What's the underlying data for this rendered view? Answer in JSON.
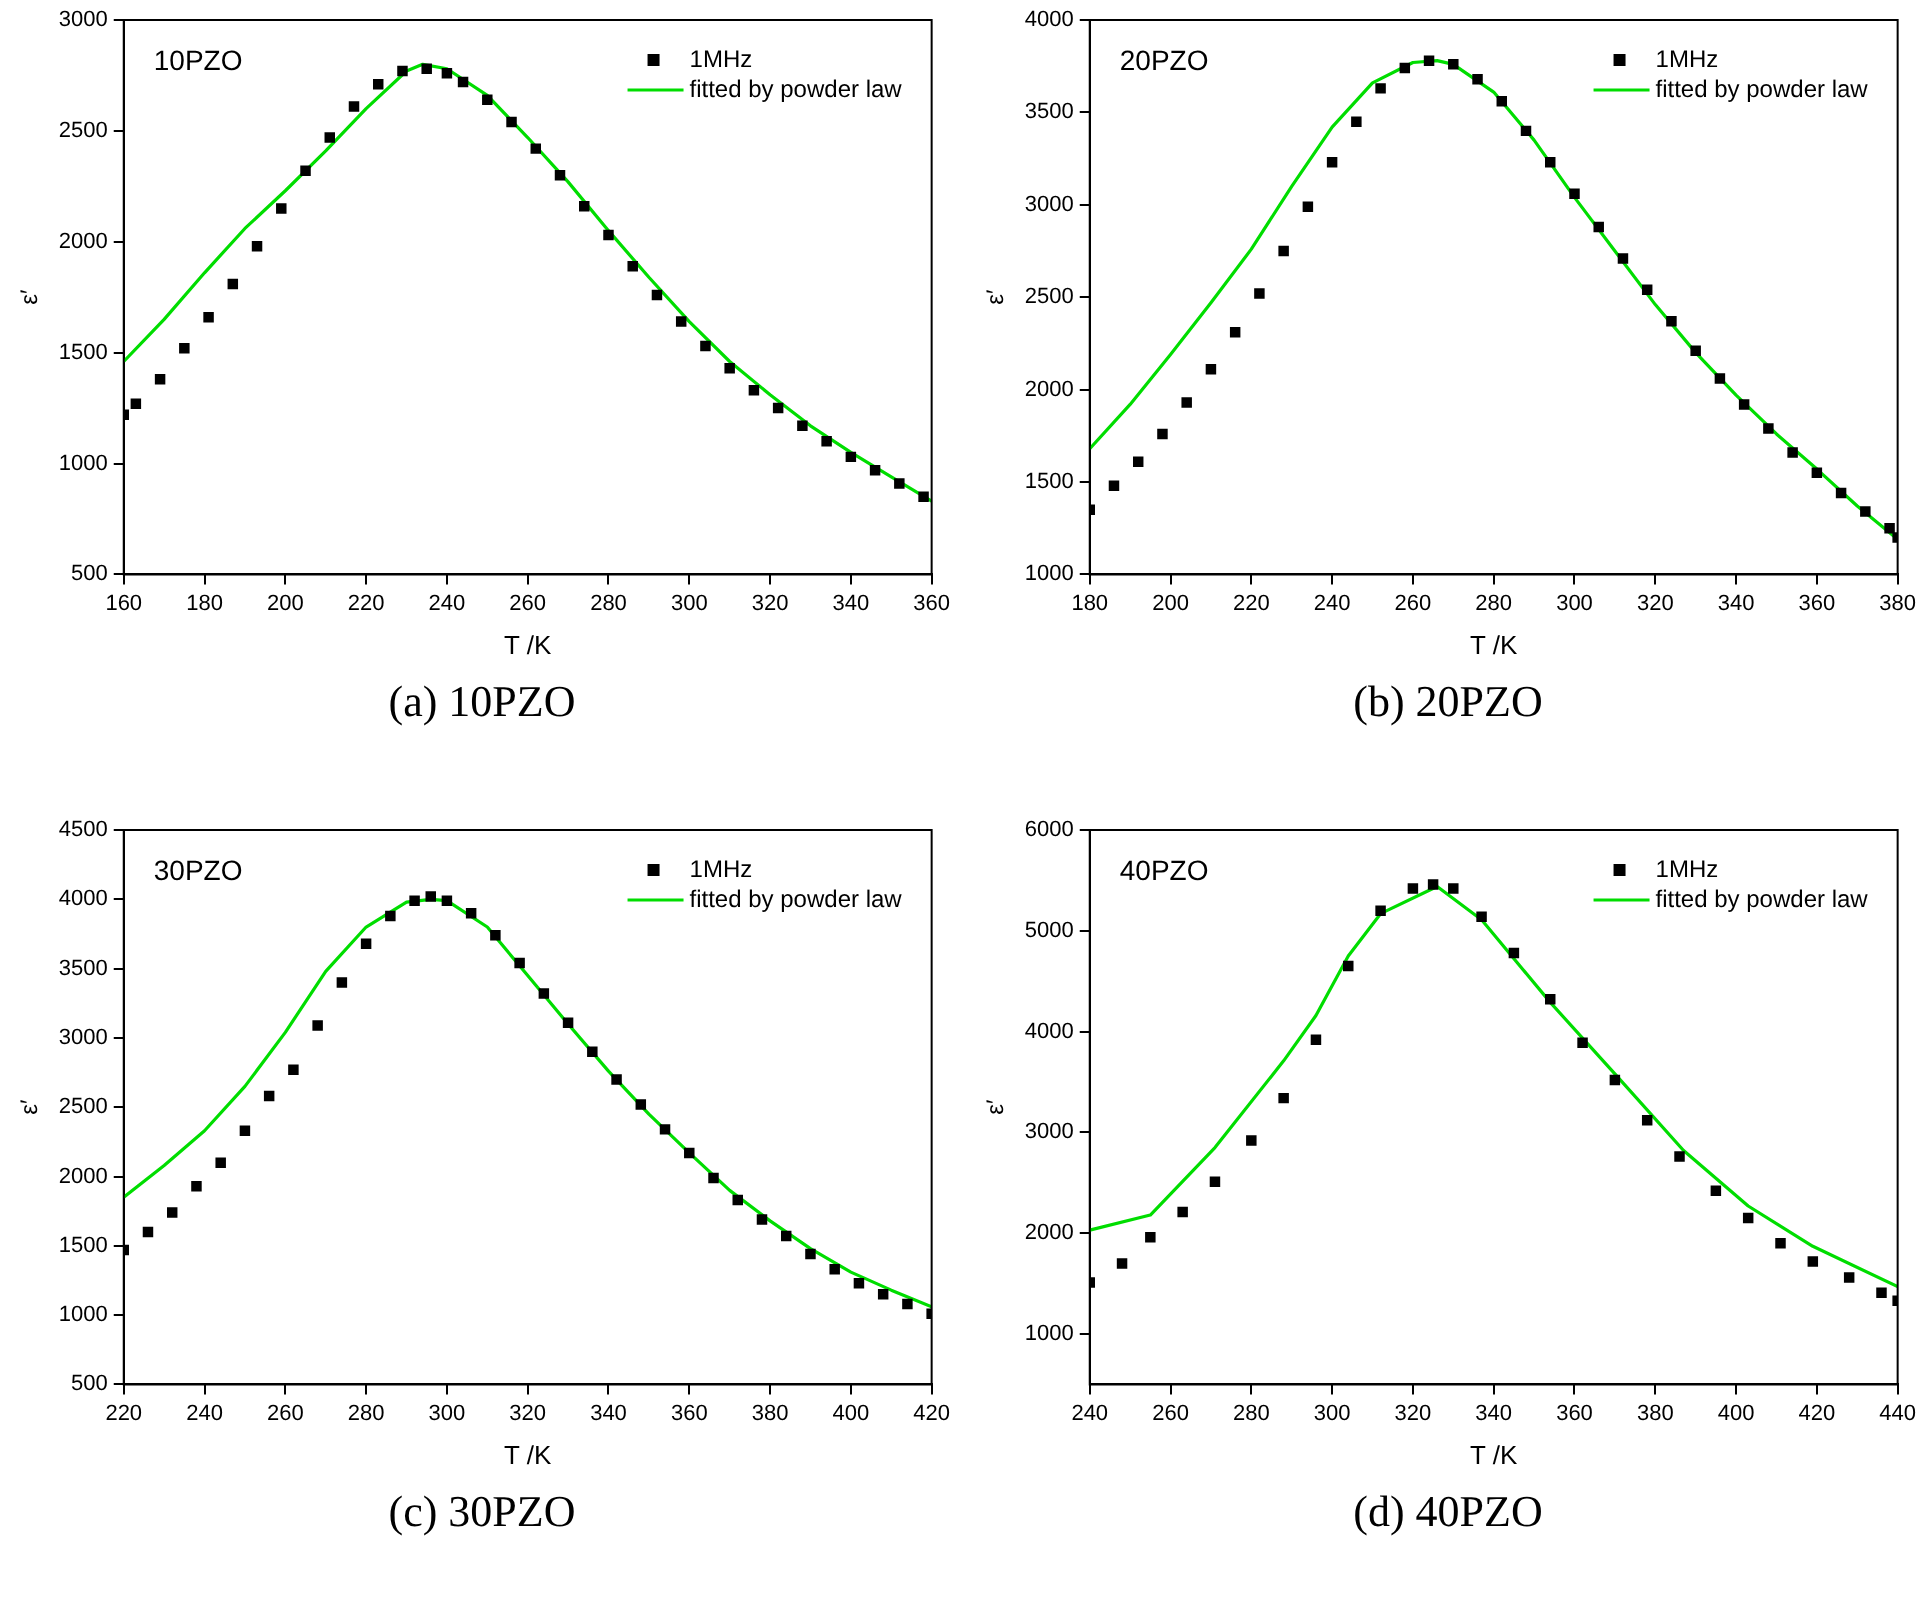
{
  "chart_data": [
    {
      "type": "scatter",
      "xlabel": "T /K",
      "ylabel": "ε′",
      "annotations": [
        "10PZO",
        "(a)  10PZO"
      ],
      "legend": "top right",
      "grid": false,
      "xlim": [
        160,
        360
      ],
      "xticks": [
        160,
        180,
        200,
        220,
        240,
        260,
        280,
        300,
        320,
        340,
        360
      ],
      "ylim": [
        500,
        3000
      ],
      "yticks": [
        500,
        1000,
        1500,
        2000,
        2500,
        3000
      ],
      "series": [
        {
          "name": "1MHz",
          "marker": "square",
          "color": "#000000",
          "x": [
            160,
            163,
            169,
            175,
            181,
            187,
            193,
            199,
            205,
            211,
            217,
            223,
            229,
            235,
            240,
            244,
            250,
            256,
            262,
            268,
            274,
            280,
            286,
            292,
            298,
            304,
            310,
            316,
            322,
            328,
            334,
            340,
            346,
            352,
            358
          ],
          "values": [
            1220,
            1270,
            1380,
            1520,
            1660,
            1810,
            1980,
            2150,
            2320,
            2470,
            2610,
            2710,
            2770,
            2780,
            2760,
            2720,
            2640,
            2540,
            2420,
            2300,
            2160,
            2030,
            1890,
            1760,
            1640,
            1530,
            1430,
            1330,
            1250,
            1170,
            1100,
            1030,
            970,
            910,
            850
          ]
        },
        {
          "name": "fitted by powder law",
          "type": "line",
          "marker": "none",
          "color": "#00dd00",
          "x": [
            160,
            170,
            180,
            190,
            200,
            210,
            220,
            230,
            234,
            240,
            250,
            260,
            270,
            280,
            290,
            300,
            310,
            320,
            330,
            340,
            350,
            360
          ],
          "values": [
            1460,
            1650,
            1860,
            2060,
            2230,
            2410,
            2600,
            2770,
            2800,
            2780,
            2660,
            2470,
            2270,
            2050,
            1840,
            1640,
            1460,
            1310,
            1170,
            1050,
            940,
            830
          ]
        }
      ]
    },
    {
      "type": "scatter",
      "xlabel": "T /K",
      "ylabel": "ε′",
      "annotations": [
        "20PZO",
        "(b)  20PZO"
      ],
      "legend": "top right",
      "grid": false,
      "xlim": [
        180,
        380
      ],
      "xticks": [
        180,
        200,
        220,
        240,
        260,
        280,
        300,
        320,
        340,
        360,
        380
      ],
      "ylim": [
        1000,
        4000
      ],
      "yticks": [
        1000,
        1500,
        2000,
        2500,
        3000,
        3500,
        4000
      ],
      "series": [
        {
          "name": "1MHz",
          "marker": "square",
          "color": "#000000",
          "x": [
            180,
            186,
            192,
            198,
            204,
            210,
            216,
            222,
            228,
            234,
            240,
            246,
            252,
            258,
            264,
            270,
            276,
            282,
            288,
            294,
            300,
            306,
            312,
            318,
            324,
            330,
            336,
            342,
            348,
            354,
            360,
            366,
            372,
            378,
            380
          ],
          "values": [
            1350,
            1480,
            1610,
            1760,
            1930,
            2110,
            2310,
            2520,
            2750,
            2990,
            3230,
            3450,
            3630,
            3740,
            3780,
            3760,
            3680,
            3560,
            3400,
            3230,
            3060,
            2880,
            2710,
            2540,
            2370,
            2210,
            2060,
            1920,
            1790,
            1660,
            1550,
            1440,
            1340,
            1250,
            1200
          ]
        },
        {
          "name": "fitted by powder law",
          "type": "line",
          "marker": "none",
          "color": "#00dd00",
          "x": [
            180,
            190,
            200,
            210,
            220,
            230,
            240,
            250,
            260,
            266,
            270,
            280,
            290,
            300,
            310,
            320,
            330,
            340,
            350,
            360,
            370,
            380
          ],
          "values": [
            1680,
            1920,
            2190,
            2470,
            2760,
            3100,
            3420,
            3660,
            3770,
            3780,
            3760,
            3610,
            3350,
            3040,
            2750,
            2460,
            2200,
            1970,
            1760,
            1570,
            1370,
            1190
          ]
        }
      ]
    },
    {
      "type": "scatter",
      "xlabel": "T /K",
      "ylabel": "ε′",
      "annotations": [
        "30PZO",
        "(c)  30PZO"
      ],
      "legend": "top right",
      "grid": false,
      "xlim": [
        220,
        420
      ],
      "xticks": [
        220,
        240,
        260,
        280,
        300,
        320,
        340,
        360,
        380,
        400,
        420
      ],
      "ylim": [
        500,
        4500
      ],
      "yticks": [
        500,
        1000,
        1500,
        2000,
        2500,
        3000,
        3500,
        4000,
        4500
      ],
      "series": [
        {
          "name": "1MHz",
          "marker": "square",
          "color": "#000000",
          "x": [
            220,
            226,
            232,
            238,
            244,
            250,
            256,
            262,
            268,
            274,
            280,
            286,
            292,
            296,
            300,
            306,
            312,
            318,
            324,
            330,
            336,
            342,
            348,
            354,
            360,
            366,
            372,
            378,
            384,
            390,
            396,
            402,
            408,
            414,
            420
          ],
          "values": [
            1470,
            1600,
            1740,
            1930,
            2100,
            2330,
            2580,
            2770,
            3090,
            3400,
            3680,
            3880,
            3990,
            4020,
            3990,
            3900,
            3740,
            3540,
            3320,
            3110,
            2900,
            2700,
            2520,
            2340,
            2170,
            1990,
            1830,
            1690,
            1570,
            1440,
            1330,
            1230,
            1150,
            1080,
            1010
          ]
        },
        {
          "name": "fitted by powder law",
          "type": "line",
          "marker": "none",
          "color": "#00dd00",
          "x": [
            220,
            230,
            240,
            250,
            260,
            270,
            280,
            290,
            296,
            300,
            310,
            320,
            330,
            340,
            350,
            360,
            370,
            380,
            390,
            400,
            410,
            420
          ],
          "values": [
            1850,
            2080,
            2330,
            2650,
            3040,
            3480,
            3800,
            3980,
            4000,
            3990,
            3800,
            3450,
            3100,
            2760,
            2450,
            2170,
            1900,
            1680,
            1480,
            1310,
            1180,
            1060
          ]
        }
      ]
    },
    {
      "type": "scatter",
      "xlabel": "T /K",
      "ylabel": "ε′",
      "annotations": [
        "40PZO",
        "(d)  40PZO"
      ],
      "legend": "top right",
      "grid": false,
      "xlim": [
        240,
        440
      ],
      "xticks": [
        240,
        260,
        280,
        300,
        320,
        340,
        360,
        380,
        400,
        420,
        440
      ],
      "ylim": [
        500,
        6000
      ],
      "yticks": [
        1000,
        2000,
        3000,
        4000,
        5000,
        6000
      ],
      "series": [
        {
          "name": "1MHz",
          "marker": "square",
          "color": "#000000",
          "x": [
            240,
            248,
            255,
            263,
            271,
            280,
            288,
            296,
            304,
            312,
            320,
            325,
            330,
            337,
            345,
            354,
            362,
            370,
            378,
            386,
            395,
            403,
            411,
            419,
            428,
            436,
            440
          ],
          "values": [
            1510,
            1700,
            1960,
            2210,
            2510,
            2920,
            3340,
            3920,
            4650,
            5200,
            5420,
            5460,
            5420,
            5140,
            4780,
            4320,
            3890,
            3520,
            3120,
            2760,
            2420,
            2150,
            1900,
            1720,
            1560,
            1410,
            1330
          ]
        },
        {
          "name": "fitted by powder law",
          "type": "line",
          "marker": "none",
          "color": "#00dd00",
          "x": [
            240,
            255,
            271,
            288,
            296,
            304,
            312,
            326,
            337,
            354,
            370,
            387,
            403,
            419,
            440
          ],
          "values": [
            2030,
            2180,
            2850,
            3710,
            4160,
            4750,
            5170,
            5440,
            5110,
            4290,
            3580,
            2820,
            2270,
            1870,
            1470
          ]
        }
      ]
    }
  ]
}
